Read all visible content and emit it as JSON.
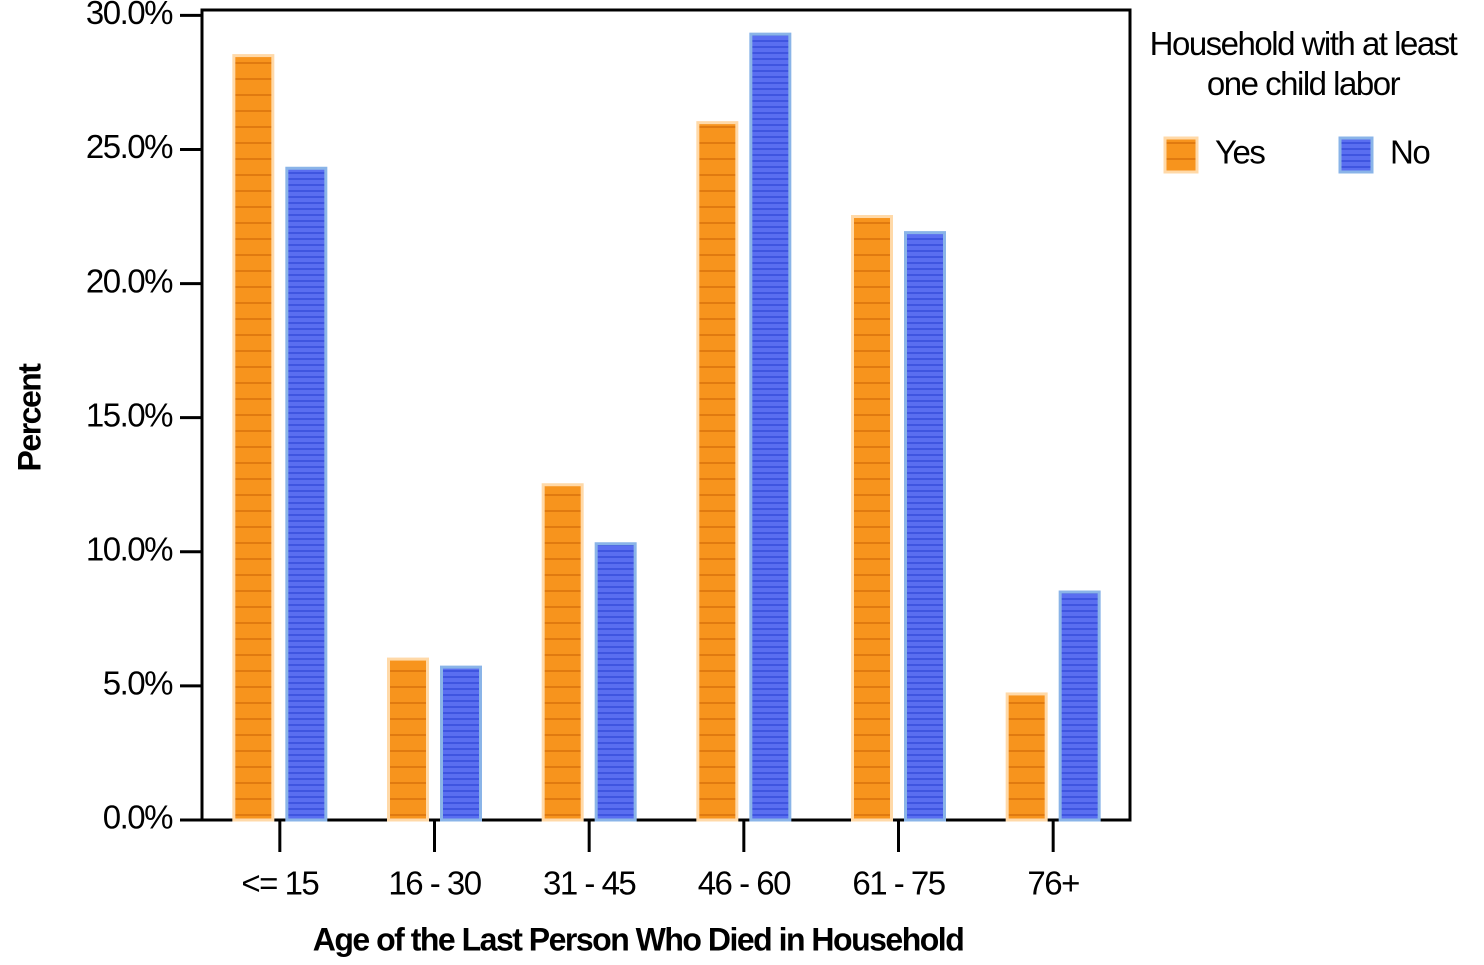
{
  "chart_data": {
    "type": "bar",
    "y_label": "Percent",
    "x_label": "Age of the Last Person Who Died in Household",
    "legend_title": "Household with at least one child labor",
    "categories": [
      "<= 15",
      "16 - 30",
      "31 - 45",
      "46 - 60",
      "61 - 75",
      "76+"
    ],
    "series": [
      {
        "name": "Yes",
        "color": "#f7941d",
        "values": [
          28.5,
          6.0,
          12.5,
          26.0,
          22.5,
          4.7
        ]
      },
      {
        "name": "No",
        "color": "#5a6ef0",
        "values": [
          24.3,
          5.7,
          10.3,
          29.3,
          21.9,
          8.5
        ]
      }
    ],
    "ylim": [
      0,
      30.2
    ],
    "yticks": [
      {
        "value": 0,
        "label": "0.0%"
      },
      {
        "value": 5,
        "label": "5.0%"
      },
      {
        "value": 10,
        "label": "10.0%"
      },
      {
        "value": 15,
        "label": "15.0%"
      },
      {
        "value": 20,
        "label": "20.0%"
      },
      {
        "value": 25,
        "label": "25.0%"
      },
      {
        "value": 30,
        "label": "30.0%"
      }
    ],
    "grid": false,
    "legend_position": "right"
  }
}
